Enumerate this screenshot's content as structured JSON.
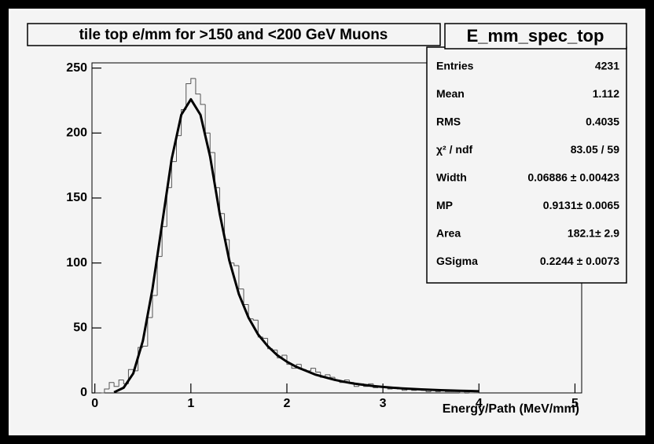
{
  "chart_data": {
    "type": "histogram",
    "title": "tile top e/mm for >150 and <200 GeV Muons",
    "xlabel": "Energy/Path (MeV/mm)",
    "bins": [
      0,
      0.05,
      0.1,
      0.15,
      0.2,
      0.25,
      0.3,
      0.35,
      0.4,
      0.45,
      0.5,
      0.55,
      0.6,
      0.65,
      0.7,
      0.75,
      0.8,
      0.85,
      0.9,
      0.95,
      1,
      1.05,
      1.1,
      1.15,
      1.2,
      1.25,
      1.3,
      1.35,
      1.4,
      1.45,
      1.5,
      1.55,
      1.6,
      1.65,
      1.7,
      1.75,
      1.8,
      1.85,
      1.9,
      1.95,
      2,
      2.05,
      2.1,
      2.15,
      2.2,
      2.25,
      2.3,
      2.35,
      2.4,
      2.45,
      2.5,
      2.55,
      2.6,
      2.65,
      2.7,
      2.75,
      2.8,
      2.85,
      2.9,
      2.95,
      3,
      3.05,
      3.1,
      3.15,
      3.2,
      3.25,
      3.3,
      3.35,
      3.4,
      3.45,
      3.5,
      3.55,
      3.6,
      3.65,
      3.7,
      3.75,
      3.8,
      3.85,
      3.9,
      3.95,
      4
    ],
    "values": [
      0,
      0,
      3,
      8,
      5,
      10,
      7,
      18,
      17,
      35,
      36,
      58,
      75,
      105,
      128,
      158,
      178,
      198,
      218,
      238,
      242,
      230,
      222,
      200,
      185,
      158,
      138,
      118,
      100,
      98,
      80,
      68,
      57,
      56,
      43,
      42,
      34,
      33,
      27,
      29,
      22,
      19,
      22,
      18,
      17,
      19,
      16,
      12,
      14,
      12,
      10,
      8,
      10,
      8,
      5,
      7,
      5,
      7,
      4,
      5,
      4,
      3,
      4,
      3,
      2,
      3,
      2,
      3,
      2,
      1,
      2,
      1,
      2,
      1,
      1,
      1,
      0,
      1,
      0,
      0
    ],
    "color": "#555555",
    "fit": {
      "color": "#000000",
      "x": [
        0.2,
        0.3,
        0.4,
        0.5,
        0.6,
        0.7,
        0.8,
        0.9,
        1.0,
        1.1,
        1.2,
        1.3,
        1.4,
        1.5,
        1.6,
        1.7,
        1.8,
        1.9,
        2.0,
        2.1,
        2.2,
        2.3,
        2.4,
        2.5,
        2.6,
        2.7,
        2.8,
        2.9,
        3.0,
        3.1,
        3.2,
        3.3,
        3.4,
        3.5,
        3.6,
        3.7,
        3.8,
        3.9,
        4.0
      ],
      "y": [
        0.5,
        4,
        15,
        40,
        80,
        130,
        180,
        214,
        226,
        214,
        182,
        138,
        102,
        76,
        58,
        45,
        36,
        29,
        24,
        20,
        17,
        14,
        12,
        10,
        8.5,
        7.2,
        6.2,
        5.3,
        4.6,
        4,
        3.5,
        3.1,
        2.7,
        2.4,
        2.1,
        1.9,
        1.7,
        1.5,
        1.3
      ]
    },
    "xlim": [
      -0.03,
      5.07
    ],
    "ylim": [
      0,
      254
    ],
    "xticks": [
      0,
      1,
      2,
      3,
      4,
      5
    ],
    "yticks": [
      0,
      50,
      100,
      150,
      200,
      250
    ],
    "stats": {
      "title": "E_mm_spec_top",
      "rows": [
        [
          "Entries",
          "4231"
        ],
        [
          "Mean",
          "1.112"
        ],
        [
          "RMS",
          "0.4035"
        ],
        [
          "χ² / ndf",
          "83.05 / 59"
        ],
        [
          "Width",
          "0.06886 ± 0.00423"
        ],
        [
          "MP",
          "0.9131± 0.0065"
        ],
        [
          "Area",
          "182.1± 2.9"
        ],
        [
          "GSigma",
          "0.2244 ± 0.0073"
        ]
      ]
    }
  }
}
